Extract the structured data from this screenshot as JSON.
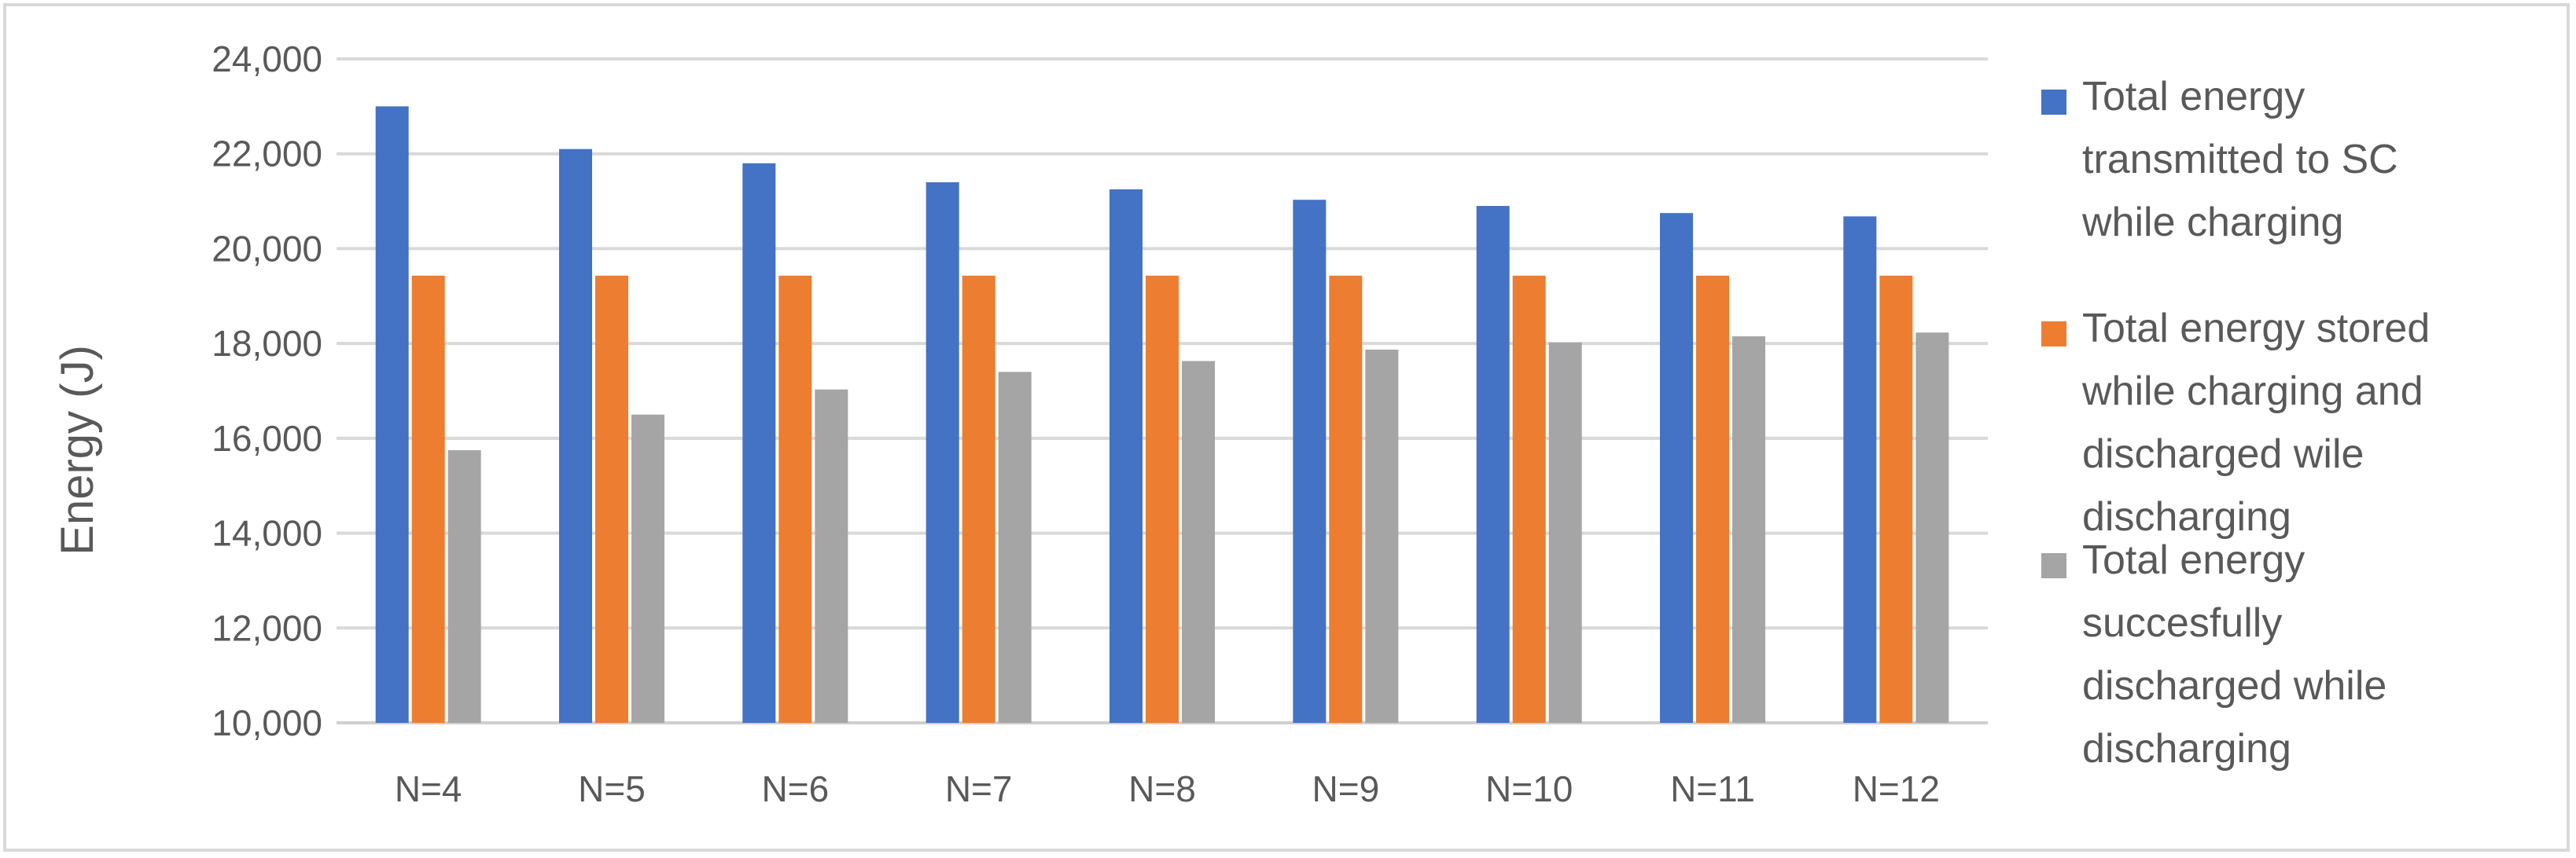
{
  "chart_data": {
    "type": "bar",
    "title": "",
    "xlabel": "",
    "ylabel": "Energy (J)",
    "ylim": [
      10000,
      24000
    ],
    "yticks": [
      10000,
      12000,
      14000,
      16000,
      18000,
      20000,
      22000,
      24000
    ],
    "ytick_labels": [
      "10,000",
      "12,000",
      "14,000",
      "16,000",
      "18,000",
      "20,000",
      "22,000",
      "24,000"
    ],
    "categories": [
      "N=4",
      "N=5",
      "N=6",
      "N=7",
      "N=8",
      "N=9",
      "N=10",
      "N=11",
      "N=12"
    ],
    "grid": true,
    "legend_position": "right",
    "series": [
      {
        "name": "Total energy transmitted to SC while charging",
        "legend_lines": [
          "Total energy",
          "transmitted to SC",
          "while charging"
        ],
        "color": "#4472c4",
        "values": [
          23000,
          22100,
          21800,
          21400,
          21250,
          21030,
          20900,
          20750,
          20680
        ]
      },
      {
        "name": "Total energy stored while charging and discharged wile discharging",
        "legend_lines": [
          "Total energy stored",
          "while charging and",
          "discharged wile",
          "discharging"
        ],
        "color": "#ed7d31",
        "values": [
          19430,
          19430,
          19430,
          19430,
          19430,
          19430,
          19430,
          19430,
          19430
        ]
      },
      {
        "name": "Total energy succesfully discharged while discharging",
        "legend_lines": [
          "Total energy",
          "succesfully",
          "discharged while",
          "discharging"
        ],
        "color": "#a5a5a5",
        "values": [
          15750,
          16500,
          17030,
          17400,
          17630,
          17870,
          18020,
          18150,
          18230
        ]
      }
    ]
  }
}
